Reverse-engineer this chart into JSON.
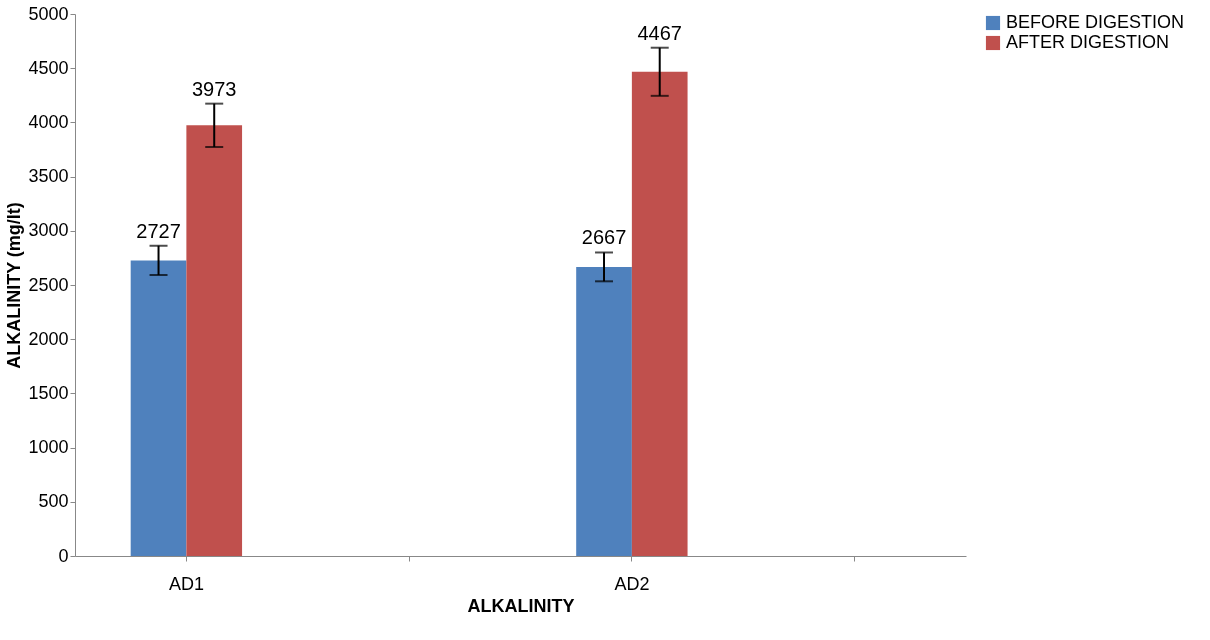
{
  "chart_data": {
    "type": "bar",
    "xlabel": "ALKALINITY",
    "ylabel": "ALKALINITY (mg/lt)",
    "categories": [
      "AD1",
      null,
      "AD2",
      null
    ],
    "series": [
      {
        "name": "BEFORE DIGESTION",
        "color": "#4f81bd",
        "values": [
          2727,
          null,
          2667,
          null
        ],
        "errors": [
          135,
          null,
          133,
          null
        ]
      },
      {
        "name": "AFTER DIGESTION",
        "color": "#c0504d",
        "values": [
          3973,
          null,
          4467,
          null
        ],
        "errors": [
          200,
          null,
          222,
          null
        ]
      }
    ],
    "ylim": [
      0,
      5000
    ],
    "yticks": [
      0,
      500,
      1000,
      1500,
      2000,
      2500,
      3000,
      3500,
      4000,
      4500,
      5000
    ],
    "data_labels": true,
    "grid": false,
    "legend": "right"
  }
}
